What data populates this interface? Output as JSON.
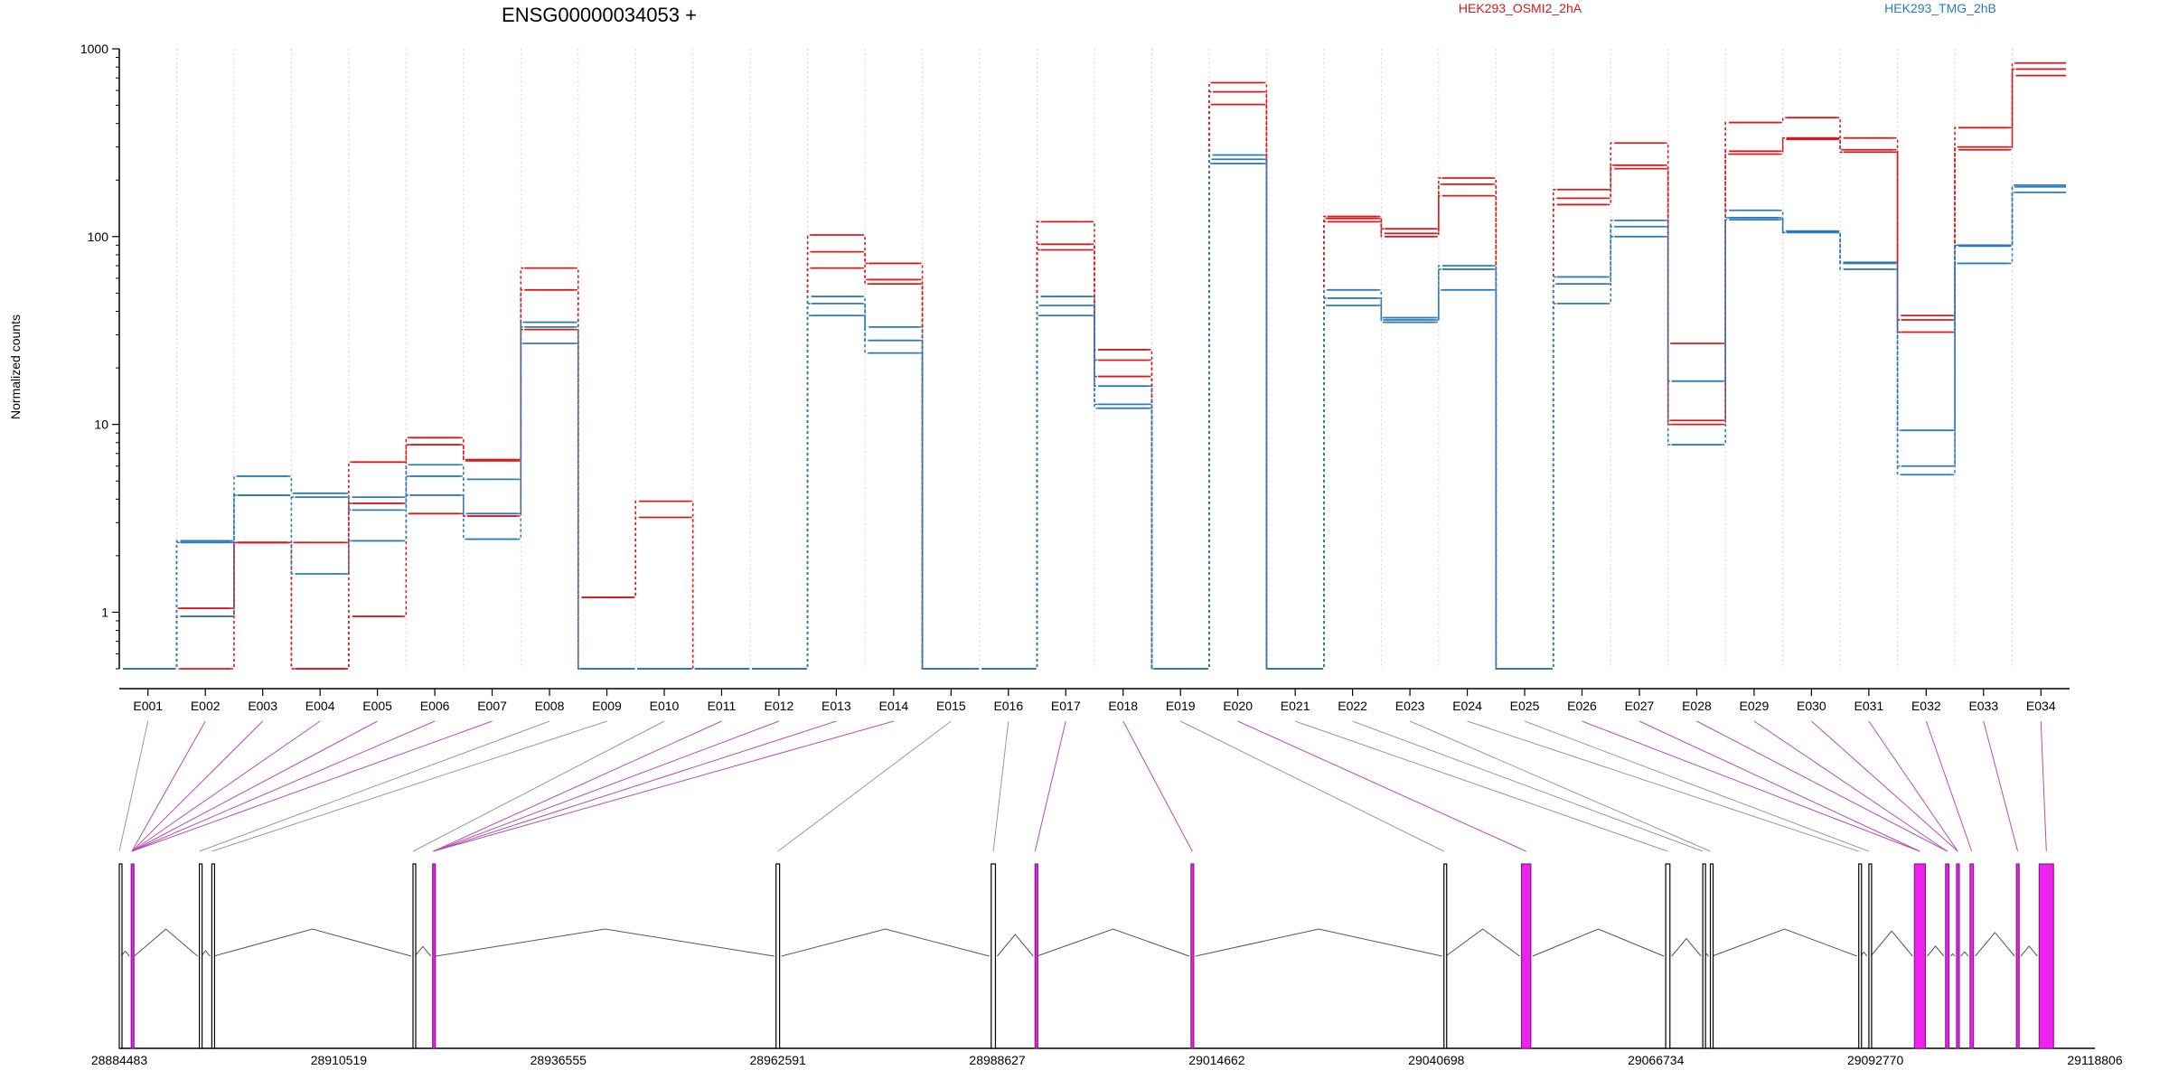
{
  "title": "ENSG00000034053 +",
  "legend": [
    {
      "label": "HEK293_OSMI2_2hA",
      "color": "#d7191c"
    },
    {
      "label": "HEK293_TMG_2hB",
      "color": "#2c7bb6"
    }
  ],
  "chart_data": {
    "type": "line",
    "ylabel": "Normalized counts",
    "yscale": "log",
    "ylim": [
      0.5,
      1000
    ],
    "yticks": [
      "1",
      "10",
      "100",
      "1000"
    ],
    "grid": "vertical dotted lines at exon boundaries",
    "legend_position": "top",
    "categories": [
      "E001",
      "E002",
      "E003",
      "E004",
      "E005",
      "E006",
      "E007",
      "E008",
      "E009",
      "E010",
      "E011",
      "E012",
      "E013",
      "E014",
      "E015",
      "E016",
      "E017",
      "E018",
      "E019",
      "E020",
      "E021",
      "E022",
      "E023",
      "E024",
      "E025",
      "E026",
      "E027",
      "E028",
      "E029",
      "E030",
      "E031",
      "E032",
      "E033",
      "E034"
    ],
    "series": [
      {
        "group": "HEK293_OSMI2_2hA",
        "color": "#d7191c",
        "values": [
          0.5,
          1.05,
          2.35,
          2.35,
          3.8,
          8.5,
          6.5,
          68,
          1.2,
          3.9,
          0.5,
          0.5,
          102,
          72,
          0.5,
          0.5,
          120,
          25,
          0.5,
          660,
          0.5,
          128,
          110,
          205,
          0.5,
          178,
          315,
          27,
          405,
          430,
          335,
          38,
          380,
          840
        ]
      },
      {
        "group": "HEK293_OSMI2_2hA",
        "color": "#d7191c",
        "values": [
          0.5,
          0.95,
          2.35,
          0.5,
          6.3,
          7.8,
          6.4,
          52,
          1.2,
          3.2,
          0.5,
          0.5,
          83,
          59,
          0.5,
          0.5,
          91,
          22,
          0.5,
          590,
          0.5,
          125,
          104,
          190,
          0.5,
          160,
          240,
          10.5,
          285,
          335,
          290,
          36,
          300,
          780
        ]
      },
      {
        "group": "HEK293_OSMI2_2hA",
        "color": "#d7191c",
        "values": [
          0.5,
          0.5,
          2.35,
          0.5,
          0.95,
          3.35,
          3.25,
          32,
          0.5,
          0.5,
          0.5,
          0.5,
          68,
          56,
          0.5,
          0.5,
          85,
          18,
          0.5,
          505,
          0.5,
          120,
          100,
          165,
          0.5,
          148,
          230,
          10,
          275,
          330,
          282,
          31,
          290,
          720
        ]
      },
      {
        "group": "HEK293_TMG_2hB",
        "color": "#2c7bb6",
        "values": [
          0.5,
          2.4,
          5.3,
          4.3,
          4.1,
          6.1,
          5.1,
          35,
          0.5,
          0.5,
          0.5,
          0.5,
          48,
          33,
          0.5,
          0.5,
          48,
          16,
          0.5,
          272,
          0.5,
          52,
          37,
          70,
          0.5,
          61,
          122,
          17,
          138,
          107,
          73,
          9.3,
          90,
          188
        ]
      },
      {
        "group": "HEK293_TMG_2hB",
        "color": "#2c7bb6",
        "values": [
          0.5,
          2.35,
          4.2,
          4.1,
          3.5,
          5.3,
          3.35,
          33,
          0.5,
          0.5,
          0.5,
          0.5,
          44,
          28,
          0.5,
          0.5,
          43,
          12.8,
          0.5,
          258,
          0.5,
          47,
          36,
          67,
          0.5,
          56,
          113,
          17,
          126,
          106,
          72,
          6,
          89,
          184
        ]
      },
      {
        "group": "HEK293_TMG_2hB",
        "color": "#2c7bb6",
        "values": [
          0.5,
          0.95,
          4.2,
          1.6,
          2.4,
          4.2,
          2.45,
          27,
          0.5,
          0.5,
          0.5,
          0.5,
          38,
          24,
          0.5,
          0.5,
          38,
          12.2,
          0.5,
          245,
          0.5,
          43,
          35,
          52,
          0.5,
          44,
          100,
          7.8,
          123,
          105,
          67,
          5.4,
          72,
          172
        ]
      }
    ]
  },
  "gene_model": {
    "coordinates": [
      "28884483",
      "28910519",
      "28936555",
      "28962591",
      "28988627",
      "29014662",
      "29040698",
      "29066734",
      "29092770",
      "29118806"
    ],
    "exons": [
      {
        "id": "E001",
        "start": 28884483,
        "end": 28884483,
        "highlight": false
      },
      {
        "id": "E002",
        "start": 28885900,
        "end": 28886050,
        "highlight": true
      },
      {
        "id": "E003",
        "start": 28885900,
        "end": 28886050,
        "highlight": true
      },
      {
        "id": "E004",
        "start": 28885900,
        "end": 28886050,
        "highlight": true
      },
      {
        "id": "E005",
        "start": 28885900,
        "end": 28886050,
        "highlight": true
      },
      {
        "id": "E006",
        "start": 28885900,
        "end": 28886050,
        "highlight": true
      },
      {
        "id": "E007",
        "start": 28885900,
        "end": 28886050,
        "highlight": true
      },
      {
        "id": "E008",
        "start": 28893980,
        "end": 28893980,
        "highlight": false
      },
      {
        "id": "E009",
        "start": 28895460,
        "end": 28895460,
        "highlight": false
      },
      {
        "id": "E010",
        "start": 28919320,
        "end": 28919320,
        "highlight": false
      },
      {
        "id": "E011",
        "start": 28921650,
        "end": 28921800,
        "highlight": true
      },
      {
        "id": "E012",
        "start": 28921650,
        "end": 28921800,
        "highlight": true
      },
      {
        "id": "E013",
        "start": 28921650,
        "end": 28921800,
        "highlight": true
      },
      {
        "id": "E014",
        "start": 28921650,
        "end": 28921800,
        "highlight": true
      },
      {
        "id": "E015",
        "start": 28962380,
        "end": 28962800,
        "highlight": false
      },
      {
        "id": "E016",
        "start": 28987900,
        "end": 28988400,
        "highlight": false
      },
      {
        "id": "E017",
        "start": 28993100,
        "end": 28993100,
        "highlight": true
      },
      {
        "id": "E018",
        "start": 29011600,
        "end": 29011900,
        "highlight": true
      },
      {
        "id": "E019",
        "start": 29041600,
        "end": 29041600,
        "highlight": false
      },
      {
        "id": "E020",
        "start": 29050800,
        "end": 29051900,
        "highlight": true
      },
      {
        "id": "E021",
        "start": 29067900,
        "end": 29068400,
        "highlight": false
      },
      {
        "id": "E022",
        "start": 29072300,
        "end": 29072300,
        "highlight": false
      },
      {
        "id": "E023",
        "start": 29073200,
        "end": 29073200,
        "highlight": false
      },
      {
        "id": "E024",
        "start": 29090800,
        "end": 29090800,
        "highlight": false
      },
      {
        "id": "E025",
        "start": 29092000,
        "end": 29092000,
        "highlight": false
      },
      {
        "id": "E026",
        "start": 29097400,
        "end": 29098700,
        "highlight": true
      },
      {
        "id": "E027",
        "start": 29097400,
        "end": 29098700,
        "highlight": true
      },
      {
        "id": "E028",
        "start": 29101100,
        "end": 29101500,
        "highlight": true
      },
      {
        "id": "E029",
        "start": 29101100,
        "end": 29101500,
        "highlight": true
      },
      {
        "id": "E030",
        "start": 29102400,
        "end": 29102700,
        "highlight": true
      },
      {
        "id": "E031",
        "start": 29102400,
        "end": 29102700,
        "highlight": true
      },
      {
        "id": "E032",
        "start": 29104000,
        "end": 29104400,
        "highlight": true
      },
      {
        "id": "E033",
        "start": 29109500,
        "end": 29109800,
        "highlight": true
      },
      {
        "id": "E034",
        "start": 29112200,
        "end": 29113900,
        "highlight": true
      }
    ]
  }
}
